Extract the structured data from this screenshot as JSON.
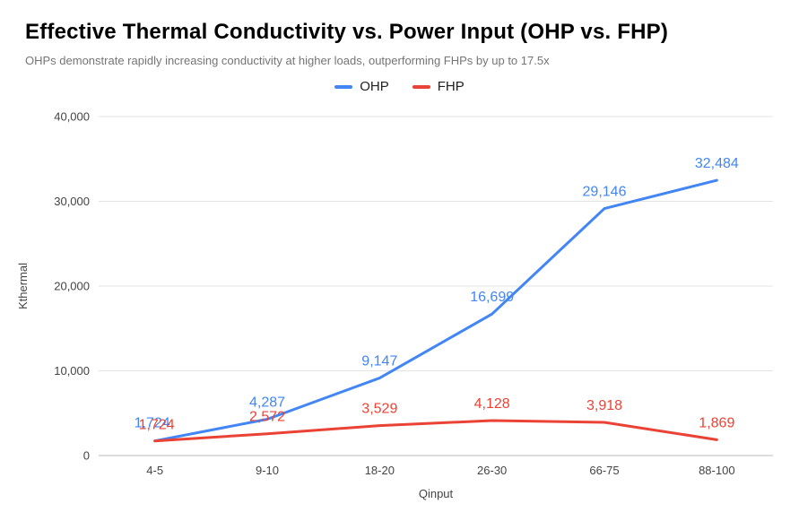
{
  "title": "Effective Thermal Conductivity vs. Power Input (OHP vs. FHP)",
  "subtitle": "OHPs demonstrate rapidly increasing conductivity at higher loads, outperforming FHPs by up to 17.5x",
  "chart_data": {
    "type": "line",
    "categories": [
      "4-5",
      "9-10",
      "18-20",
      "26-30",
      "66-75",
      "88-100"
    ],
    "series": [
      {
        "name": "OHP",
        "color": "#4285F4",
        "values": [
          1724,
          4287,
          9147,
          16699,
          29146,
          32484
        ]
      },
      {
        "name": "FHP",
        "color": "#EA4335",
        "values": [
          1724,
          2572,
          3529,
          4128,
          3918,
          1869
        ]
      }
    ],
    "xlabel": "Qinput",
    "ylabel": "Kthermal",
    "ylim": [
      0,
      40000
    ],
    "yticks": [
      0,
      10000,
      20000,
      30000,
      40000
    ],
    "grid": true,
    "legend_position": "top",
    "colors": {
      "gridline": "#e3e3e3",
      "baseline": "#bdbdbd",
      "axis_text": "#444444"
    }
  }
}
